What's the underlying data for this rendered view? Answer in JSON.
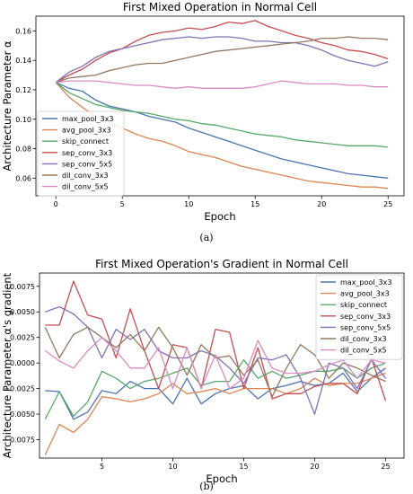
{
  "captions": [
    "(a)",
    "(b)"
  ],
  "chart_data": [
    {
      "type": "line",
      "title": "First Mixed Operation in Normal Cell",
      "xlabel": "Epoch",
      "ylabel": "Architecture Parameter α",
      "xlim": [
        -1.5,
        26.2
      ],
      "ylim": [
        0.048,
        0.17
      ],
      "xticks": [
        0,
        5,
        10,
        15,
        20,
        25
      ],
      "yticks": [
        0.06,
        0.08,
        0.1,
        0.12,
        0.14,
        0.16
      ],
      "grid": false,
      "legend": "lower-left",
      "x": [
        0,
        1,
        2,
        3,
        4,
        5,
        6,
        7,
        8,
        9,
        10,
        11,
        12,
        13,
        14,
        15,
        16,
        17,
        18,
        19,
        20,
        21,
        22,
        23,
        24,
        25
      ],
      "series": [
        {
          "name": "max_pool_3x3",
          "color": "#4c72b0",
          "values": [
            0.125,
            0.121,
            0.119,
            0.113,
            0.109,
            0.107,
            0.105,
            0.102,
            0.1,
            0.098,
            0.094,
            0.091,
            0.088,
            0.085,
            0.082,
            0.079,
            0.076,
            0.073,
            0.071,
            0.069,
            0.067,
            0.065,
            0.063,
            0.062,
            0.061,
            0.06
          ]
        },
        {
          "name": "avg_pool_3x3",
          "color": "#dd8452",
          "values": [
            0.125,
            0.115,
            0.108,
            0.102,
            0.098,
            0.094,
            0.09,
            0.087,
            0.085,
            0.082,
            0.078,
            0.076,
            0.074,
            0.071,
            0.068,
            0.066,
            0.064,
            0.062,
            0.06,
            0.058,
            0.057,
            0.056,
            0.055,
            0.054,
            0.054,
            0.053
          ]
        },
        {
          "name": "skip_connect",
          "color": "#55a868",
          "values": [
            0.125,
            0.118,
            0.114,
            0.11,
            0.108,
            0.106,
            0.105,
            0.104,
            0.102,
            0.1,
            0.099,
            0.097,
            0.096,
            0.094,
            0.092,
            0.09,
            0.089,
            0.088,
            0.086,
            0.085,
            0.084,
            0.083,
            0.082,
            0.082,
            0.082,
            0.081
          ]
        },
        {
          "name": "sep_conv_3x3",
          "color": "#c44e52",
          "values": [
            0.125,
            0.13,
            0.134,
            0.14,
            0.145,
            0.148,
            0.153,
            0.157,
            0.159,
            0.16,
            0.162,
            0.161,
            0.163,
            0.166,
            0.165,
            0.167,
            0.163,
            0.16,
            0.157,
            0.155,
            0.152,
            0.15,
            0.147,
            0.146,
            0.144,
            0.141
          ]
        },
        {
          "name": "sep_conv_5x5",
          "color": "#8172b3",
          "values": [
            0.125,
            0.132,
            0.136,
            0.142,
            0.146,
            0.148,
            0.15,
            0.152,
            0.154,
            0.155,
            0.156,
            0.155,
            0.156,
            0.156,
            0.155,
            0.153,
            0.153,
            0.152,
            0.152,
            0.15,
            0.147,
            0.143,
            0.14,
            0.138,
            0.136,
            0.139
          ]
        },
        {
          "name": "dil_conv_3x3",
          "color": "#937860",
          "values": [
            0.125,
            0.128,
            0.129,
            0.13,
            0.133,
            0.135,
            0.137,
            0.138,
            0.138,
            0.14,
            0.142,
            0.144,
            0.146,
            0.147,
            0.148,
            0.149,
            0.15,
            0.151,
            0.152,
            0.153,
            0.155,
            0.155,
            0.156,
            0.155,
            0.155,
            0.154
          ]
        },
        {
          "name": "dil_conv_5x5",
          "color": "#da8bc3",
          "values": [
            0.125,
            0.126,
            0.126,
            0.126,
            0.125,
            0.124,
            0.123,
            0.123,
            0.122,
            0.121,
            0.122,
            0.121,
            0.121,
            0.121,
            0.121,
            0.122,
            0.124,
            0.126,
            0.125,
            0.124,
            0.124,
            0.124,
            0.123,
            0.123,
            0.122,
            0.122
          ]
        }
      ]
    },
    {
      "type": "line",
      "title": "First Mixed Operation's Gradient in Normal Cell",
      "xlabel": "Epoch",
      "ylabel": "Architecture Parameter α's gradient",
      "xlim": [
        0.6,
        26.3
      ],
      "ylim": [
        -0.0093,
        0.0088
      ],
      "xticks": [
        5,
        10,
        15,
        20,
        25
      ],
      "yticks": [
        -0.0075,
        -0.005,
        -0.0025,
        0.0,
        0.0025,
        0.005,
        0.0075
      ],
      "ytick_labels": [
        "−0.0075",
        "−0.0050",
        "−0.0025",
        "0.0000",
        "0.0025",
        "0.0050",
        "0.0075"
      ],
      "grid": false,
      "legend": "top-right",
      "x": [
        1,
        2,
        3,
        4,
        5,
        6,
        7,
        8,
        9,
        10,
        11,
        12,
        13,
        14,
        15,
        16,
        17,
        18,
        19,
        20,
        21,
        22,
        23,
        24,
        25
      ],
      "series": [
        {
          "name": "max_pool_3x3",
          "color": "#4c72b0",
          "values": [
            -0.0027,
            -0.0028,
            -0.0055,
            -0.0048,
            -0.0027,
            -0.003,
            -0.0018,
            -0.0025,
            -0.0025,
            -0.004,
            -0.0015,
            -0.004,
            -0.003,
            -0.0025,
            -0.0022,
            -0.0035,
            -0.0025,
            -0.0022,
            -0.0018,
            -0.0022,
            -0.002,
            -0.001,
            -0.0028,
            -0.0015,
            -0.0005
          ]
        },
        {
          "name": "avg_pool_3x3",
          "color": "#dd8452",
          "values": [
            -0.009,
            -0.006,
            -0.0068,
            -0.0055,
            -0.0033,
            -0.0035,
            -0.0038,
            -0.0035,
            -0.003,
            -0.002,
            -0.003,
            -0.0028,
            -0.0025,
            -0.003,
            -0.0025,
            -0.0025,
            -0.0025,
            -0.003,
            -0.0025,
            -0.0015,
            -0.0022,
            -0.002,
            -0.002,
            -0.0015,
            -0.001
          ]
        },
        {
          "name": "skip_connect",
          "color": "#55a868",
          "values": [
            -0.0055,
            -0.0028,
            -0.0052,
            -0.0038,
            -0.0008,
            -0.0015,
            -0.0025,
            -0.0018,
            -0.0015,
            -0.001,
            -0.0005,
            -0.0022,
            -0.0018,
            -0.0018,
            0.0003,
            -0.0015,
            -0.0008,
            -0.0015,
            -0.0012,
            -0.0008,
            -0.0008,
            -0.0005,
            -0.0015,
            -0.0005,
            0.0
          ]
        },
        {
          "name": "sep_conv_3x3",
          "color": "#c44e52",
          "values": [
            0.0037,
            0.0037,
            0.008,
            0.0047,
            0.0043,
            0.0005,
            0.0053,
            0.0012,
            -0.0025,
            0.0018,
            0.0015,
            -0.0025,
            0.0033,
            0.003,
            -0.0025,
            0.0015,
            -0.0035,
            -0.003,
            -0.003,
            -0.0023,
            -0.002,
            -0.002,
            -0.003,
            0.0005,
            -0.0037
          ]
        },
        {
          "name": "sep_conv_5x5",
          "color": "#8172b3",
          "values": [
            0.005,
            0.0055,
            0.0048,
            0.0035,
            0.0005,
            0.0033,
            0.0023,
            0.0033,
            0.0012,
            0.0005,
            0.0005,
            0.0012,
            0.0007,
            -0.0005,
            -0.002,
            0.0005,
            0.0003,
            0.0008,
            -0.0015,
            -0.005,
            0.0,
            -0.0005,
            -0.0025,
            0.0003,
            -0.0015
          ]
        },
        {
          "name": "dil_conv_3x3",
          "color": "#937860",
          "values": [
            0.0035,
            0.0005,
            0.0028,
            0.0035,
            0.0025,
            0.0015,
            0.0028,
            0.0012,
            0.0035,
            0.0015,
            -0.0012,
            0.0018,
            0.0005,
            0.0007,
            -0.0012,
            0.0003,
            -0.0033,
            -0.0005,
            0.0018,
            0.0008,
            -0.0015,
            0.0,
            -0.0005,
            -0.0012,
            -0.0018
          ]
        },
        {
          "name": "dil_conv_5x5",
          "color": "#da8bc3",
          "values": [
            0.0012,
            0.0002,
            -0.0005,
            0.0012,
            0.0025,
            0.0012,
            -0.0005,
            -0.0005,
            0.0015,
            -0.0025,
            0.0015,
            -0.0025,
            0.0008,
            -0.0025,
            -0.0015,
            0.0022,
            -0.0005,
            -0.001,
            -0.001,
            -0.0008,
            -0.0002,
            0.0003,
            -0.0015,
            0.0003,
            0.0
          ]
        }
      ]
    }
  ]
}
